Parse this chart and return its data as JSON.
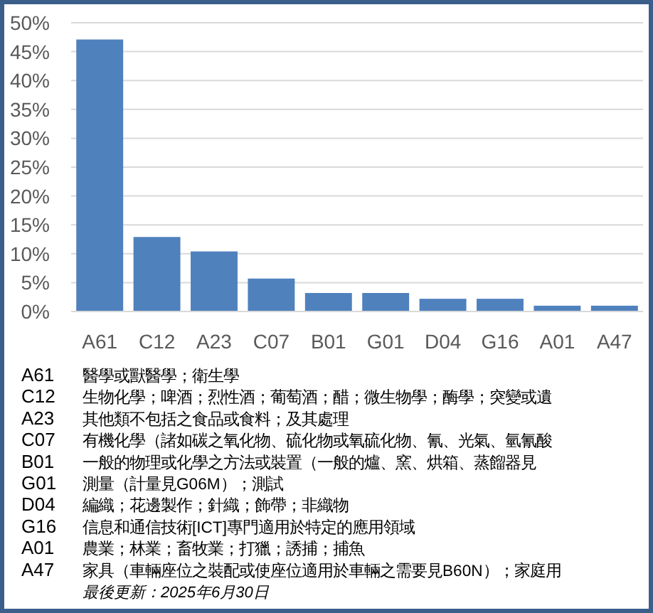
{
  "chart_data": {
    "type": "bar",
    "categories": [
      "A61",
      "C12",
      "A23",
      "C07",
      "B01",
      "G01",
      "D04",
      "G16",
      "A01",
      "A47"
    ],
    "values": [
      47.1,
      12.9,
      10.4,
      5.7,
      3.2,
      3.2,
      2.2,
      2.2,
      1.0,
      1.0
    ],
    "color": "#4f81bd",
    "ylim": [
      0,
      50
    ],
    "yticks": [
      {
        "value": 0,
        "label": "0%"
      },
      {
        "value": 5,
        "label": "5%"
      },
      {
        "value": 10,
        "label": "10%"
      },
      {
        "value": 15,
        "label": "15%"
      },
      {
        "value": 20,
        "label": "20%"
      },
      {
        "value": 25,
        "label": "25%"
      },
      {
        "value": 30,
        "label": "30%"
      },
      {
        "value": 35,
        "label": "35%"
      },
      {
        "value": 40,
        "label": "40%"
      },
      {
        "value": 45,
        "label": "45%"
      },
      {
        "value": 50,
        "label": "50%"
      }
    ],
    "grid": "y",
    "annotations": [
      "A61 醫學或獸醫學；衛生學",
      "C12 生物化學；啤酒；烈性酒；葡萄酒；醋；微生物學；酶學；突變或遺",
      "A23 其他類不包括之食品或食料；及其處理",
      "C07 有機化學（諸如碳之氧化物、硫化物或氧硫化物、氰、光氣、氫氰酸",
      "B01 一般的物理或化學之方法或裝置（一般的爐、窯、烘箱、蒸餾器見",
      "G01 測量（計量見G06M）；測試",
      "D04 編織；花邊製作；針織；飾帶；非織物",
      "G16 信息和通信技術[ICT]專門適用於特定的應用領域",
      "A01 農業；林業；畜牧業；打獵；誘捕；捕魚",
      "A47 家具（車輛座位之裝配或使座位適用於車輛之需要見B60N）；家庭用",
      "最後更新：2025年6月30日"
    ]
  }
}
